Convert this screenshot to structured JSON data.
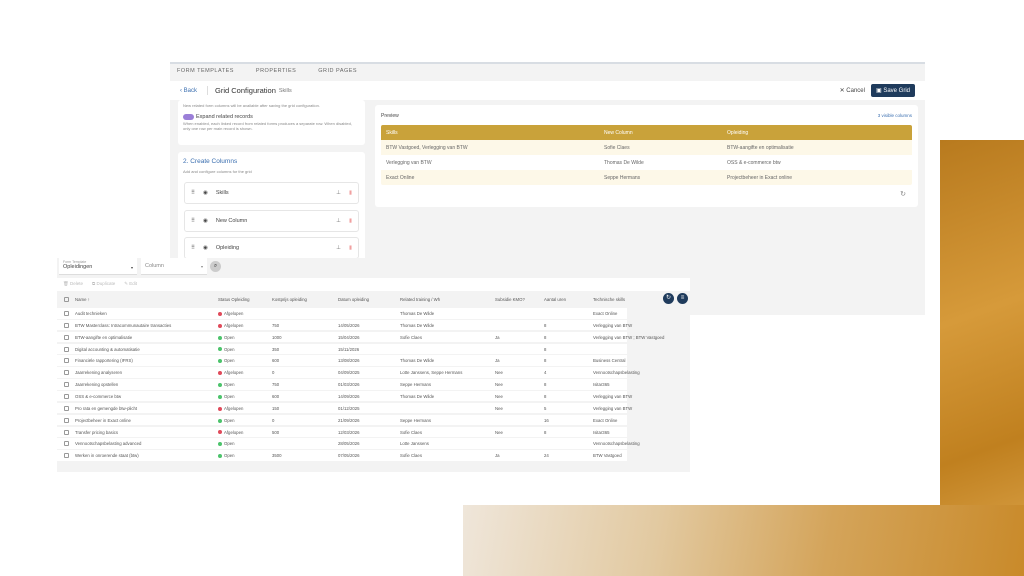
{
  "config": {
    "tabs": [
      "FORM TEMPLATES",
      "PROPERTIES",
      "GRID PAGES"
    ],
    "back": "‹ Back",
    "title": "Grid Configuration",
    "subtitle": "Skills",
    "cancel": "✕ Cancel",
    "save": "Save Grid",
    "note": "New related form columns will be available after saving the grid configuration.",
    "expand_label": "Expand related records",
    "expand_desc": "When enabled, each linked record from related forms produces a separate row. When disabled, only one row per main record is shown.",
    "expand_on": true,
    "section_title": "2. Create Columns",
    "section_desc": "Add and configure columns for the grid",
    "columns": [
      "Skills",
      "New Column",
      "Opleiding"
    ],
    "preview_label": "Preview",
    "visible_columns": "3 visible columns",
    "preview_headers": [
      "Skills",
      "New Column",
      "Opleiding"
    ],
    "preview_rows": [
      [
        "BTW Vastgoed, Verlegging van BTW",
        "Sofie Claes",
        "BTW-aangifte en optimalisatie"
      ],
      [
        "Verlegging van BTW",
        "Thomas De Wilde",
        "OSS & e-commerce btw"
      ],
      [
        "Exact Online",
        "Seppe Hermans",
        "Projectbeheer in Exact online"
      ]
    ],
    "accent": "#c9a23a",
    "primary": "#1f3b5c"
  },
  "grid": {
    "form_template_label": "Form Template",
    "form_template": "Opleidingen",
    "column_placeholder": "Column",
    "toolbar": [
      "Delete",
      "Duplicate",
      "Edit"
    ],
    "headers": [
      "Name ↑",
      "Status Opleiding",
      "Kostprijs opleiding",
      "Datum opleiding",
      "Related training / Wh",
      "Subsidie KMO?",
      "Aantal uren",
      "Technische skills"
    ],
    "status_colors": {
      "Afgelopen": "#e04a5a",
      "Open": "#4cc36b"
    },
    "rows": [
      [
        "Audit technieken",
        "Afgelopen",
        "",
        "",
        "Thomas De Wilde",
        "",
        "",
        "Exact Online"
      ],
      [
        "BTW Masterclass: Intracommunautaire transacties",
        "Afgelopen",
        "750",
        "14/05/2026",
        "Thomas De Wilde",
        "",
        "8",
        "Verlegging van BTW"
      ],
      [
        "BTW-aangifte en optimalisatie",
        "Open",
        "1000",
        "15/04/2026",
        "Sofie Claes",
        "Ja",
        "8",
        "Verlegging van BTW ; BTW Vastgoed"
      ],
      [
        "Digital accounting & automatisatie",
        "Open",
        "350",
        "15/11/2026",
        "",
        "",
        "8",
        ""
      ],
      [
        "Financiële rapportering (IFRS)",
        "Open",
        "600",
        "13/08/2026",
        "Thomas De Wilde",
        "Ja",
        "8",
        "Business Central"
      ],
      [
        "Jaarrekening analyseren",
        "Afgelopen",
        "0",
        "04/09/2025",
        "Lotte Janssens, Seppe Hermans",
        "Nee",
        "4",
        "Vennootschapsbelasting"
      ],
      [
        "Jaarrekening opstellen",
        "Open",
        "750",
        "01/03/2026",
        "Seppe Hermans",
        "Nee",
        "8",
        "Isitar365"
      ],
      [
        "OSS & e-commerce btw",
        "Open",
        "600",
        "14/09/2026",
        "Thomas De Wilde",
        "Nee",
        "8",
        "Verlegging van BTW"
      ],
      [
        "Pro rata en gemengde btw-plicht",
        "Afgelopen",
        "150",
        "01/12/2025",
        "",
        "Nee",
        "5",
        "Verlegging van BTW"
      ],
      [
        "Projectbeheer in Exact online",
        "Open",
        "0",
        "21/09/2026",
        "Seppe Hermans",
        "",
        "16",
        "Exact Online"
      ],
      [
        "Transfer pricing basics",
        "Afgelopen",
        "500",
        "12/03/2026",
        "Sofie Claes",
        "Nee",
        "8",
        "Isitar365"
      ],
      [
        "Vennootschapsbelasting advanced",
        "Open",
        "",
        "28/05/2026",
        "Lotte Janssens",
        "",
        "",
        "Vennootschapsbelasting"
      ],
      [
        "Werken in onroerende staat (btw)",
        "Open",
        "3500",
        "07/05/2026",
        "Sofie Claes",
        "Ja",
        "24",
        "BTW Vastgoed"
      ]
    ]
  }
}
